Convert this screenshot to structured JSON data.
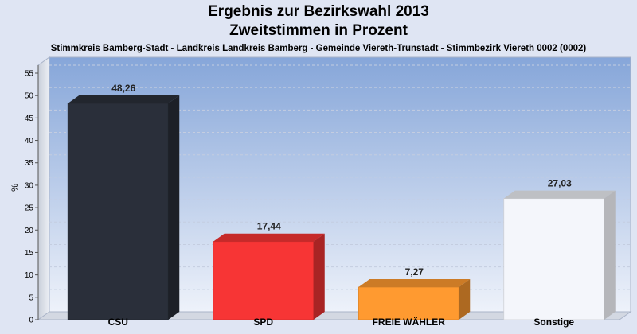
{
  "chart_data": {
    "type": "bar",
    "title": "Ergebnis zur Bezirkswahl 2013",
    "title_line2": "Zweitstimmen in Prozent",
    "subtitle": "Stimmkreis Bamberg-Stadt - Landkreis Landkreis Bamberg - Gemeinde Viereth-Trunstadt - Stimmbezirk Viereth 0002 (0002)",
    "ylabel": "%",
    "xlabel": "",
    "ylim": [
      0,
      55
    ],
    "yticks": [
      0,
      5,
      10,
      15,
      20,
      25,
      30,
      35,
      40,
      45,
      50,
      55
    ],
    "grid": true,
    "categories": [
      "CSU",
      "SPD",
      "FREIE WÄHLER",
      "Sonstige"
    ],
    "values": [
      48.26,
      17.44,
      7.27,
      27.03
    ],
    "value_labels": [
      "48,26",
      "17,44",
      "7,27",
      "27,03"
    ],
    "colors": [
      "#2a2f3a",
      "#f73535",
      "#ff9a30",
      "#f4f6fb"
    ]
  }
}
